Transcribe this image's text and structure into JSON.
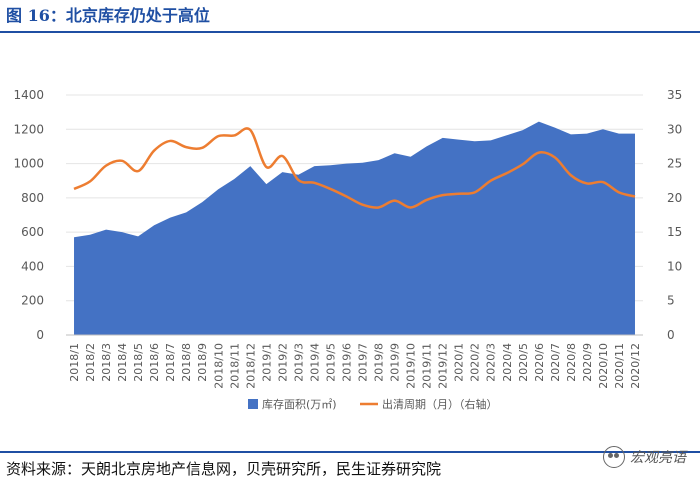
{
  "figure": {
    "title": "图 16：北京库存仍处于高位",
    "source": "资料来源：天朗北京房地产信息网，贝壳研究所，民生证券研究院",
    "brand": "宏观亮语"
  },
  "colors": {
    "area": "#4472C4",
    "line": "#ED7D31",
    "title": "#1F4FA3"
  },
  "chart_data": {
    "type": "area",
    "categories": [
      "2018/1",
      "2018/2",
      "2018/3",
      "2018/4",
      "2018/5",
      "2018/6",
      "2018/7",
      "2018/8",
      "2018/9",
      "2018/10",
      "2018/11",
      "2018/12",
      "2019/1",
      "2019/2",
      "2019/3",
      "2019/4",
      "2019/5",
      "2019/6",
      "2019/7",
      "2019/8",
      "2019/9",
      "2019/10",
      "2019/11",
      "2019/12",
      "2020/1",
      "2020/2",
      "2020/3",
      "2020/4",
      "2020/5",
      "2020/6",
      "2020/7",
      "2020/8",
      "2020/9",
      "2020/10",
      "2020/11",
      "2020/12"
    ],
    "left_axis": {
      "ylim": [
        0,
        1400
      ],
      "ticks": [
        "0",
        "200",
        "400",
        "600",
        "800",
        "1000",
        "1200",
        "1400"
      ]
    },
    "right_axis": {
      "ylim": [
        0,
        35
      ],
      "ticks": [
        "0",
        "5",
        "10",
        "15",
        "20",
        "25",
        "30",
        "35"
      ]
    },
    "legend_position": "bottom",
    "series": [
      {
        "name": "库存面积(万㎡)",
        "type": "area",
        "axis": "left",
        "values": [
          570,
          585,
          615,
          600,
          575,
          640,
          685,
          715,
          775,
          850,
          910,
          985,
          880,
          950,
          935,
          985,
          990,
          1000,
          1005,
          1020,
          1060,
          1040,
          1100,
          1150,
          1140,
          1130,
          1135,
          1165,
          1195,
          1245,
          1210,
          1170,
          1175,
          1200,
          1175,
          1175
        ]
      },
      {
        "name": "出清周期（月）（右轴）",
        "type": "line",
        "axis": "right",
        "values": [
          21.3,
          22.4,
          24.7,
          25.4,
          23.9,
          26.9,
          28.3,
          27.4,
          27.3,
          29.0,
          29.1,
          29.9,
          24.5,
          26.1,
          22.6,
          22.2,
          21.3,
          20.2,
          19.0,
          18.6,
          19.6,
          18.6,
          19.7,
          20.4,
          20.6,
          20.8,
          22.5,
          23.6,
          24.9,
          26.6,
          25.9,
          23.3,
          22.1,
          22.3,
          20.8,
          20.2
        ]
      }
    ]
  }
}
